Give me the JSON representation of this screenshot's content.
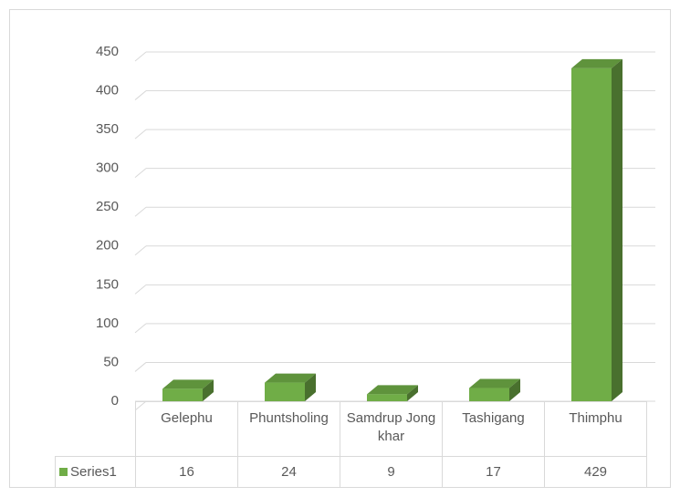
{
  "chart_data": {
    "type": "bar",
    "categories": [
      "Gelephu",
      "Phuntsholing",
      "Samdrup Jongkhar",
      "Tashigang",
      "Thimphu"
    ],
    "series": [
      {
        "name": "Series1",
        "color": "#70ad47",
        "values": [
          16,
          24,
          9,
          17,
          429
        ]
      }
    ],
    "ylim": [
      0,
      450
    ],
    "yticks": [
      0,
      50,
      100,
      150,
      200,
      250,
      300,
      350,
      400,
      450
    ],
    "grid": true,
    "data_table": true
  }
}
